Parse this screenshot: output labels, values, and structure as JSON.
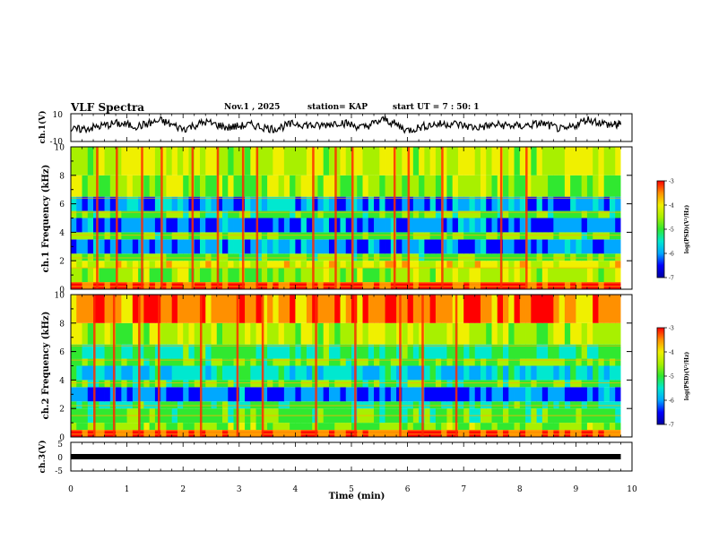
{
  "header": {
    "title": "VLF Spectra",
    "date": "Nov.1 , 2025",
    "station": "station= KAP",
    "start": "start UT = 7 : 50: 1"
  },
  "colors": {
    "spectrogram_ramp": [
      "#0000a0",
      "#0000ff",
      "#00a8ff",
      "#00e8d0",
      "#30e830",
      "#a8f000",
      "#f0f000",
      "#ff9000",
      "#ff0000",
      "#ffffff"
    ],
    "trace": "#000000",
    "frame": "#000000"
  },
  "chart_data": [
    {
      "type": "line",
      "name": "ch1-waveform",
      "ylabel": "ch.1(V)",
      "ylim": [
        -10,
        10
      ],
      "yticks": [
        "10",
        "-10"
      ],
      "xlim": [
        0,
        10
      ],
      "x": [
        0.0,
        0.4,
        0.8,
        1.2,
        1.6,
        2.0,
        2.4,
        2.8,
        3.2,
        3.6,
        4.0,
        4.4,
        4.8,
        5.2,
        5.6,
        6.0,
        6.4,
        6.8,
        7.2,
        7.6,
        8.0,
        8.4,
        8.8,
        9.2,
        9.6,
        9.8
      ],
      "values": [
        -2,
        0,
        3,
        1,
        5,
        -1,
        4,
        0,
        2,
        -1,
        3,
        1,
        4,
        0,
        6,
        -2,
        2,
        3,
        0,
        2,
        1,
        3,
        -2,
        6,
        2,
        2
      ]
    },
    {
      "type": "heatmap",
      "name": "ch1-spectrogram",
      "ylabel": "ch.1 Frequency (kHz)",
      "ylim": [
        0,
        10
      ],
      "yticks": [
        "0",
        "2",
        "4",
        "6",
        "8",
        "10"
      ],
      "xlim": [
        0,
        9.8
      ],
      "colorbar": {
        "label": "log(PSD)(V²/Hz)",
        "range": [
          -7,
          -3
        ],
        "ticks": [
          "-3",
          "-4",
          "-5",
          "-6",
          "-7"
        ]
      },
      "freq_bands_khz": [
        0,
        0.5,
        1.5,
        2,
        2.5,
        3.5,
        4,
        5,
        5.5,
        6.5,
        8,
        10
      ],
      "band_log_psd": [
        -3.3,
        -4.6,
        -4.2,
        -4.8,
        -5.9,
        -4.8,
        -6.0,
        -4.9,
        -5.9,
        -4.6,
        -4.4
      ],
      "bright_bursts_min": [
        0.45,
        0.8,
        1.25,
        1.6,
        2.15,
        2.6,
        3.05,
        3.3,
        4.3,
        4.7,
        5.0,
        5.75,
        6.0,
        6.6,
        7.65,
        8.1
      ]
    },
    {
      "type": "heatmap",
      "name": "ch2-spectrogram",
      "ylabel": "ch.2 Frequency (kHz)",
      "ylim": [
        0,
        10
      ],
      "yticks": [
        "0",
        "2",
        "4",
        "6",
        "8",
        "10"
      ],
      "xlim": [
        0,
        9.8
      ],
      "colorbar": {
        "label": "log(PSD)(V²/Hz)",
        "range": [
          -7,
          -3
        ],
        "ticks": [
          "-3",
          "-4",
          "-5",
          "-6",
          "-7"
        ]
      },
      "freq_bands_khz": [
        0,
        0.5,
        1,
        2,
        2.5,
        3.5,
        4,
        5,
        5.5,
        6.5,
        8,
        10
      ],
      "band_log_psd": [
        -3.4,
        -4.7,
        -4.9,
        -5.2,
        -6.1,
        -4.9,
        -5.5,
        -4.8,
        -5.2,
        -4.5,
        -3.6
      ],
      "bright_bursts_min": [
        0.4,
        0.75,
        1.2,
        1.55,
        2.3,
        2.95,
        3.4,
        4.35,
        5.05,
        5.85,
        6.25,
        6.85
      ]
    },
    {
      "type": "line",
      "name": "ch3-waveform",
      "ylabel": "ch.3(V)",
      "ylim": [
        -5,
        5
      ],
      "yticks": [
        "5",
        "0",
        "-5"
      ],
      "xlim": [
        0,
        10
      ],
      "x": [
        0,
        9.8
      ],
      "values": [
        0,
        0
      ]
    }
  ],
  "xaxis": {
    "label": "Time (min)",
    "ticks": [
      "0",
      "1",
      "2",
      "3",
      "4",
      "5",
      "6",
      "7",
      "8",
      "9",
      "10"
    ]
  }
}
